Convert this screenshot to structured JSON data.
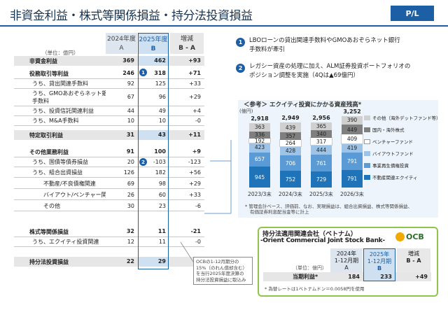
{
  "header": {
    "title": "非資金利益・株式等関係損益・持分法投資損益",
    "badge": "P/L"
  },
  "table": {
    "unit": "（単位：億円）",
    "col_a": [
      "2024年度",
      "A"
    ],
    "col_b": [
      "2025年度",
      "B"
    ],
    "col_d": [
      "増減",
      "B - A"
    ],
    "rows": [
      {
        "label": "非資金利益",
        "a": "369",
        "b": "462",
        "d": "+93"
      },
      {
        "label": "役務取引等利益",
        "a": "246",
        "b": "318",
        "d": "+71"
      },
      {
        "label": "うち、貸出関連手数料",
        "a": "92",
        "b": "125",
        "d": "+33"
      },
      {
        "label": "うち、GMOあおぞらネット銀行",
        "label2": "手数料",
        "a": "67",
        "b": "96",
        "d": "+29"
      },
      {
        "label": "うち、投資信託関連利益",
        "a": "44",
        "b": "49",
        "d": "+4"
      },
      {
        "label": "うち、M&A手数料",
        "a": "10",
        "b": "10",
        "d": "-0"
      },
      {
        "label": "特定取引利益",
        "a": "31",
        "b": "43",
        "d": "+11"
      },
      {
        "label": "その他業務利益",
        "a": "91",
        "b": "100",
        "d": "+9"
      },
      {
        "label": "うち、国債等債券損益",
        "a": "20",
        "b": "-103",
        "d": "-123"
      },
      {
        "label": "うち、組合出資損益",
        "a": "126",
        "b": "182",
        "d": "+56"
      },
      {
        "label": "不動産/不良債権関連",
        "a": "69",
        "b": "98",
        "d": "+29"
      },
      {
        "label": "バイアウト/ベンチャー関連",
        "a": "26",
        "b": "60",
        "d": "+33"
      },
      {
        "label": "その他",
        "a": "30",
        "b": "23",
        "d": "-6"
      },
      {
        "label": "株式等関係損益",
        "a": "32",
        "b": "11",
        "d": "-21"
      },
      {
        "label": "うち、エクイティ投資関連",
        "a": "12",
        "b": "11",
        "d": "-0"
      },
      {
        "label": "持分法投資損益",
        "a": "22",
        "b": "29",
        "d": "+6"
      }
    ],
    "badge1": "1",
    "badge2": "2",
    "callout": [
      "OCBの1-12月期分の",
      "15%（のれん償却含む）",
      "を当行2025年度決算の",
      "持分法投資損益に取込み"
    ]
  },
  "notes": [
    {
      "num": "1",
      "line1": "LBOローンの貸出関連手数料やGMOあおぞらネット銀行",
      "line2": "手数料が牽引"
    },
    {
      "num": "2",
      "line1": "レガシー資産の処理に加え、ALM証券投資ポートフォリオの",
      "line2": "ポジション調整を実施（4Qは▲69億円）"
    }
  ],
  "chart_data": {
    "type": "bar",
    "title": "＜参考＞ エクイティ投資にかかる資産残高*",
    "ylabel": "(億円)",
    "categories": [
      "2023/3末",
      "2024/3末",
      "2025/3末",
      "2026/3末"
    ],
    "totals": [
      "2,918",
      "2,949",
      "2,956",
      "3,252"
    ],
    "series": [
      {
        "name": "不動産関連エクイティ",
        "color": "#1f73b8",
        "values": [
          945,
          752,
          729,
          791
        ]
      },
      {
        "name": "事業再生債権投資",
        "color": "#5b9bd5",
        "values": [
          657,
          706,
          761,
          791
        ]
      },
      {
        "name": "バイアウトファンド",
        "color": "#9dc3e6",
        "values": [
          423,
          428,
          444,
          419
        ]
      },
      {
        "name": "ベンチャーファンド",
        "color": "#ffffff",
        "values": [
          192,
          264,
          317,
          409
        ]
      },
      {
        "name": "国内・海外株式",
        "color": "#7f7f7f",
        "values": [
          336,
          357,
          340,
          449
        ]
      },
      {
        "name": "その他（海外デットファンド等）",
        "color": "#d0d0d0",
        "values": [
          363,
          439,
          365,
          390
        ]
      }
    ],
    "footnote": [
      "* 管理会計ベース、評価前、なお、実現損益は、組合出資損益、株式等関係損益、",
      "有価証券利息配当金等に計上"
    ]
  },
  "ocb": {
    "title1": "持分法適用関連会社（ベトナム）",
    "title2": "-Orient Commercial Joint Stock Bank-",
    "logo": "OCB",
    "unit": "（単位：億円）",
    "col_a": [
      "2024年",
      "1-12月期",
      "A"
    ],
    "col_b": [
      "2025年",
      "1-12月期",
      "B"
    ],
    "col_d": [
      "増減",
      "B - A"
    ],
    "row_label": "当期利益*",
    "a": "184",
    "b": "233",
    "d": "+49",
    "footnote": "* 為替レートは1ベトナムドン＝0.0058円を使用"
  }
}
